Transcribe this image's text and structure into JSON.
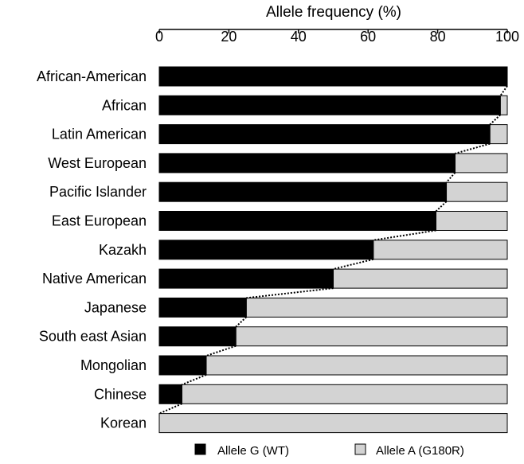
{
  "chart_data": {
    "type": "bar",
    "orientation": "horizontal",
    "stacked": true,
    "xlabel": "Allele frequency (%)",
    "xlabel_position": "top",
    "xlim": [
      0,
      100
    ],
    "xticks": [
      "0",
      "20",
      "40",
      "60",
      "80",
      "100"
    ],
    "grid": false,
    "categories": [
      "African-American",
      "African",
      "Latin American",
      "West European",
      "Pacific Islander",
      "East European",
      "Kazakh",
      "Native American",
      "Japanese",
      "South east Asian",
      "Mongolian",
      "Chinese",
      "Korean"
    ],
    "series": [
      {
        "name": "Allele G (WT)",
        "color": "#000000",
        "values": [
          100,
          98,
          95,
          85,
          82.5,
          79.5,
          61.5,
          50,
          25,
          22,
          13.5,
          6.5,
          0
        ]
      },
      {
        "name": "Allele A (G180R)",
        "color": "#d3d3d3",
        "values": [
          0,
          2,
          5,
          15,
          17.5,
          20.5,
          38.5,
          50,
          75,
          78,
          86.5,
          93.5,
          100
        ]
      }
    ],
    "connector_line": "dotted",
    "legend_position": "bottom"
  }
}
